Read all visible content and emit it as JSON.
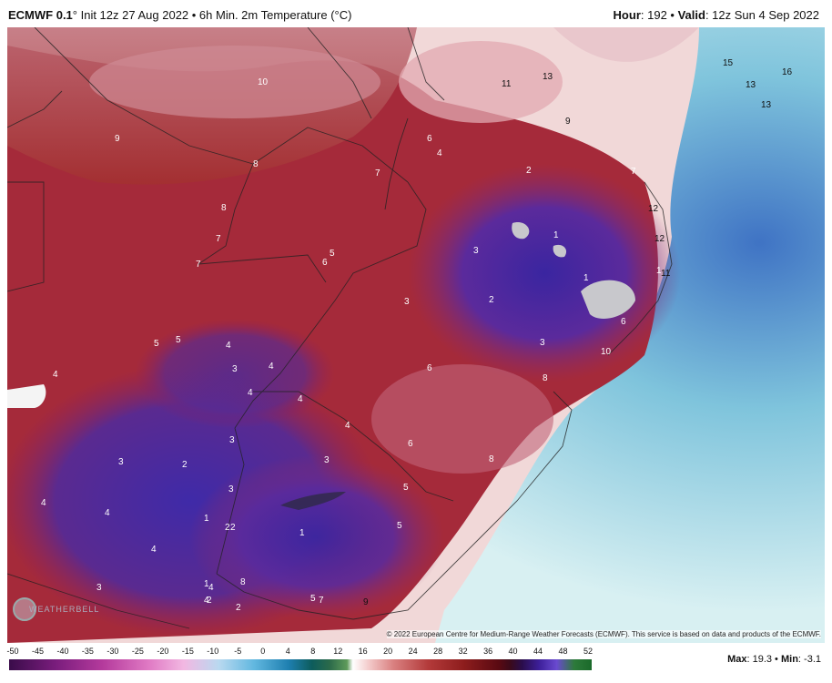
{
  "header": {
    "model": "ECMWF 0.1",
    "run_info": "° Init 12z 27 Aug 2022 • 6h Min. 2m Temperature (°C)",
    "hour_label": "Hour",
    "hour_value": ": 192 • ",
    "valid_label": "Valid",
    "valid_value": ": 12z Sun 4 Sep 2022"
  },
  "map": {
    "labels": [
      "9",
      "10",
      "11",
      "13",
      "15",
      "16",
      "13",
      "13",
      "9",
      "6",
      "4",
      "7",
      "8",
      "8",
      "7",
      "7",
      "5",
      "6",
      "7",
      "2",
      "1",
      "1",
      "3",
      "3",
      "2",
      "1",
      "12",
      "12",
      "11",
      "6",
      "3",
      "10",
      "5",
      "5",
      "4",
      "3",
      "4",
      "4",
      "4",
      "6",
      "8",
      "4",
      "3",
      "4",
      "3",
      "3",
      "2",
      "6",
      "8",
      "4",
      "4",
      "2",
      "3",
      "1",
      "2",
      "5",
      "1",
      "5",
      "4",
      "3",
      "4",
      "1",
      "4",
      "2",
      "2",
      "8",
      "5",
      "7",
      "9"
    ],
    "copyright": "© 2022 European Centre for Medium-Range Weather Forecasts (ECMWF). This service is based on data and products of the ECMWF.",
    "logo": "WEATHERBELL"
  },
  "legend": {
    "ticks": [
      "-50",
      "-45",
      "-40",
      "-35",
      "-30",
      "-25",
      "-20",
      "-15",
      "-10",
      "-5",
      "0",
      "4",
      "8",
      "12",
      "16",
      "20",
      "24",
      "28",
      "32",
      "36",
      "40",
      "44",
      "48",
      "52"
    ]
  },
  "footer": {
    "max_label": "Max",
    "max_value": ": 19.3 • ",
    "min_label": "Min",
    "min_value": ": -3.1"
  }
}
